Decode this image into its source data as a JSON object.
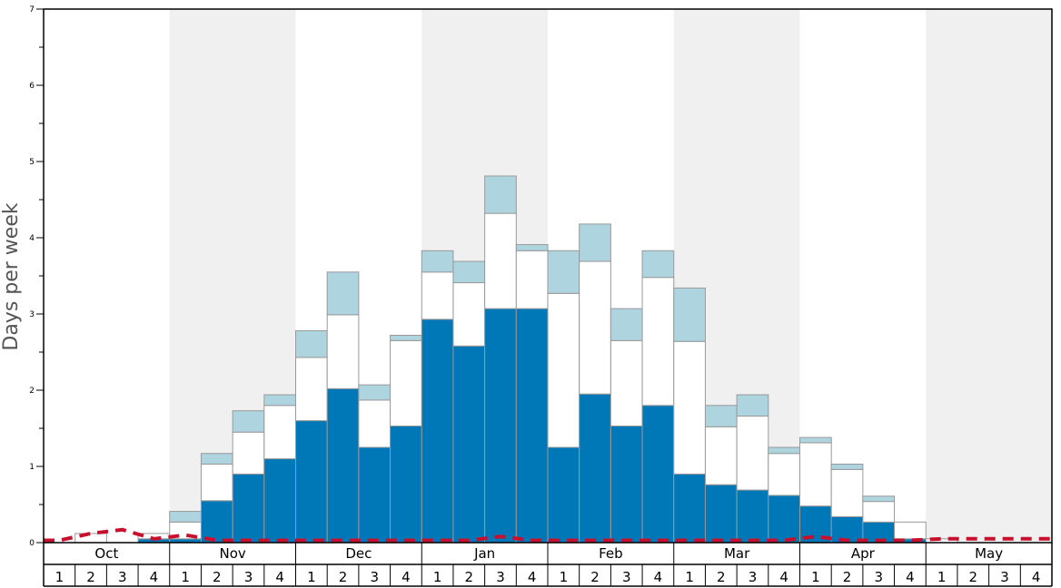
{
  "chart_data": {
    "type": "bar",
    "stacked": true,
    "ylabel": "Days per week",
    "ylim": [
      0,
      7
    ],
    "y_major_ticks": [
      "0",
      "1",
      "2",
      "3",
      "4",
      "5",
      "6",
      "7"
    ],
    "months": [
      "Oct",
      "Nov",
      "Dec",
      "Jan",
      "Feb",
      "Mar",
      "Apr",
      "May"
    ],
    "weeks_per_month": [
      "1",
      "2",
      "3",
      "4"
    ],
    "shaded_months": [
      "Nov",
      "Jan",
      "Mar",
      "May"
    ],
    "colors": {
      "bottom": "#0077b6",
      "middle": "#ffffff",
      "top": "#aed4e0",
      "bar_border": "#999999",
      "shade": "#f0f0f0",
      "line": "#c8102e"
    },
    "series": [
      {
        "values": [
          0,
          0,
          0,
          0.05,
          0.05,
          0.55,
          0.9,
          1.1,
          1.6,
          2.02,
          1.25,
          1.53,
          2.93,
          2.58,
          3.07,
          3.07,
          1.25,
          1.95,
          1.53,
          1.8,
          0.9,
          0.76,
          0.69,
          0.62,
          0.48,
          0.34,
          0.27,
          0.05,
          0,
          0,
          0,
          0
        ]
      },
      {
        "values": [
          0,
          0.12,
          0,
          0.07,
          0.22,
          0.48,
          0.55,
          0.7,
          0.83,
          0.97,
          0.62,
          1.12,
          0.62,
          0.83,
          1.25,
          0.76,
          2.02,
          1.74,
          1.12,
          1.68,
          1.74,
          0.76,
          0.97,
          0.55,
          0.83,
          0.62,
          0.27,
          0.22,
          0.05,
          0,
          0,
          0
        ]
      },
      {
        "values": [
          0,
          0,
          0,
          0,
          0.14,
          0.14,
          0.28,
          0.14,
          0.35,
          0.56,
          0.2,
          0.07,
          0.28,
          0.28,
          0.49,
          0.08,
          0.56,
          0.49,
          0.42,
          0.35,
          0.7,
          0.28,
          0.28,
          0.08,
          0.07,
          0.07,
          0.07,
          0,
          0,
          0,
          0,
          0
        ]
      }
    ],
    "line_values": [
      0.03,
      0.12,
      0.17,
      0.05,
      0.1,
      0.03,
      0.03,
      0.03,
      0.03,
      0.03,
      0.03,
      0.03,
      0.03,
      0.03,
      0.08,
      0.03,
      0.03,
      0.03,
      0.03,
      0.03,
      0.03,
      0.03,
      0.03,
      0.03,
      0.08,
      0.03,
      0.03,
      0.03,
      0.05,
      0.05,
      0.05,
      0.05
    ]
  }
}
